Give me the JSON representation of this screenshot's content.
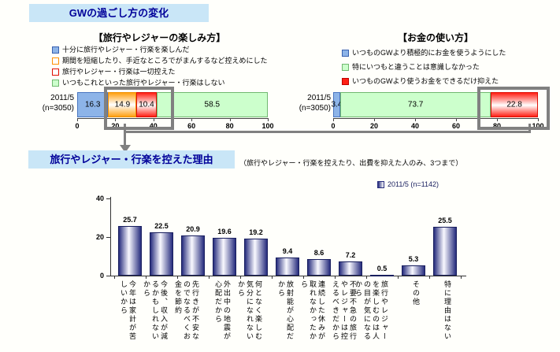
{
  "title": "GWの過ごし方の変化",
  "section2": {
    "title": "旅行やレジャー・行楽を控えた理由",
    "note": "（旅行やレジャー・行楽を控えたり、出費を抑えた人のみ、3つまで）",
    "legend_label": "2011/5 (n=1142)"
  },
  "colors": {
    "title_bg": "#c9e6f7",
    "title_text": "#000099",
    "highlight_frame": "#808080",
    "segment_blue": "#8db4e8",
    "segment_orange": "#ffa012",
    "segment_red": "#ff2015",
    "segment_pale_green": "#ccffcc",
    "bottom_bar_navy": "#262c7d"
  },
  "chart_data": [
    {
      "type": "bar",
      "subtype": "horizontal-stacked",
      "title": "【旅行やレジャーの楽しみ方】",
      "row_label": [
        "2011/5",
        "(n=3050)"
      ],
      "xlim": [
        0,
        100
      ],
      "ticks": [
        0,
        20,
        40,
        60,
        80,
        100
      ],
      "series": [
        {
          "name": "十分に旅行やレジャー・行楽を楽しんだ",
          "value": 16.3,
          "style": "st-blue",
          "swatch": "sw-blue"
        },
        {
          "name": "期間を短縮したり、手近なところでがまんするなど控えめにした",
          "value": 14.9,
          "style": "st-orange",
          "swatch": "sw-orange"
        },
        {
          "name": "旅行やレジャー・行楽は一切控えた",
          "value": 10.4,
          "style": "st-red",
          "swatch": "sw-red-outline"
        },
        {
          "name": "いつもこれといった旅行やレジャー・行楽はしない",
          "value": 58.5,
          "style": "st-green",
          "swatch": "sw-green"
        }
      ],
      "highlight": "values 14.9 and 10.4 framed in gray, arrow points to reason chart"
    },
    {
      "type": "bar",
      "subtype": "horizontal-stacked",
      "title": "【お金の使い方】",
      "row_label": [
        "2011/5",
        "(n=3050)"
      ],
      "xlim": [
        0,
        100
      ],
      "ticks": [
        0,
        20,
        40,
        60,
        80,
        100
      ],
      "series": [
        {
          "name": "いつものGWより積極的にお金を使うようにした",
          "value": 3.4,
          "style": "st-blue",
          "swatch": "sw-blue-solid"
        },
        {
          "name": "特にいつもと違うことは意識しなかった",
          "value": 73.7,
          "style": "st-green",
          "swatch": "sw-green"
        },
        {
          "name": "いつものGWより使うお金をできるだけ抑えた",
          "value": 22.8,
          "style": "st-red",
          "swatch": "sw-red-solid"
        }
      ],
      "highlight": "value 22.8 framed in gray, connected to reason chart"
    },
    {
      "type": "bar",
      "subtype": "vertical",
      "legend": "2011/5 (n=1142)",
      "ylim": [
        0,
        40
      ],
      "yticks": [
        0,
        20,
        40
      ],
      "categories": [
        "今年は家計が苦しいから",
        "今後、収入が減るかもしれないから",
        "先行きが不安なのでなるべくお金を節約",
        "外出中の地震が心配だから",
        "何となく楽しむ気分になれないから",
        "放射能が心配だから",
        "連続した休みが取れなかったから",
        "不要不急の旅行やレジャーは控えるべきだから",
        "旅行やレジャーを楽しむのは人の目が気になるから",
        "その他",
        "特に理由はない"
      ],
      "values": [
        25.7,
        22.5,
        20.9,
        19.6,
        19.2,
        9.4,
        8.6,
        7.2,
        0.5,
        5.3,
        25.5
      ]
    }
  ]
}
